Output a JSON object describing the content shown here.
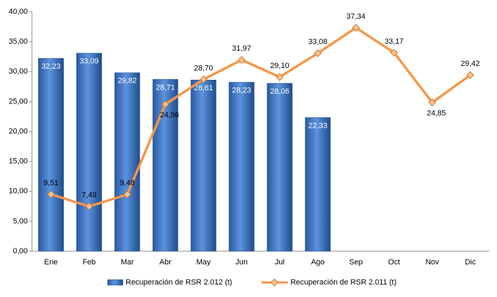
{
  "chart_data": {
    "type": "bar",
    "categories": [
      "Ene",
      "Feb",
      "Mar",
      "Abr",
      "May",
      "Jun",
      "Jul",
      "Ago",
      "Sep",
      "Oct",
      "Nov",
      "Dic"
    ],
    "series": [
      {
        "name": "Recuperación de RSR 2.012 (t)",
        "type": "bar",
        "color": "#3a75c4",
        "values": [
          32.23,
          33.09,
          29.82,
          28.71,
          28.61,
          28.23,
          28.06,
          22.33,
          null,
          null,
          null,
          null
        ],
        "value_labels": [
          "32,23",
          "33,09",
          "29,82",
          "28,71",
          "28,61",
          "28,23",
          "28,06",
          "22,33",
          null,
          null,
          null,
          null
        ]
      },
      {
        "name": "Recuperación de RSR 2.011 (t)",
        "type": "line",
        "color": "#f79646",
        "values": [
          9.51,
          7.49,
          9.48,
          24.56,
          28.7,
          31.97,
          29.1,
          33.08,
          37.34,
          33.17,
          24.85,
          29.42
        ],
        "value_labels": [
          "9,51",
          "7,49",
          "9,48",
          "24,56",
          "28,70",
          "31,97",
          "29,10",
          "33,08",
          "37,34",
          "33,17",
          "24,85",
          "29,42"
        ]
      }
    ],
    "ylim": [
      0,
      40
    ],
    "yticks": [
      {
        "value": 0,
        "label": "0,00"
      },
      {
        "value": 5,
        "label": "5,00"
      },
      {
        "value": 10,
        "label": "10,00"
      },
      {
        "value": 15,
        "label": "15,00"
      },
      {
        "value": 20,
        "label": "20,00"
      },
      {
        "value": 25,
        "label": "25,00"
      },
      {
        "value": 30,
        "label": "30,00"
      },
      {
        "value": 35,
        "label": "35,00"
      },
      {
        "value": 40,
        "label": "40,00"
      }
    ],
    "grid": false
  }
}
